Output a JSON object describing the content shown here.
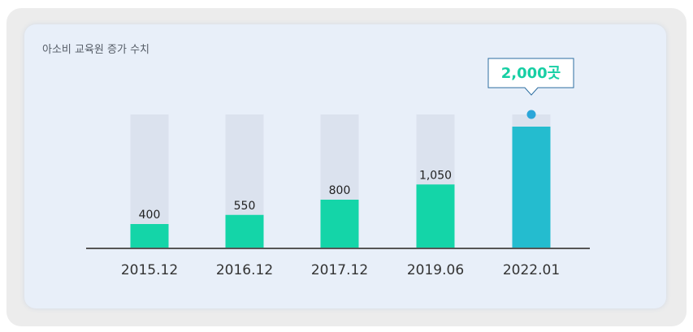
{
  "chart_data": {
    "type": "bar",
    "title": "아소비 교육원 증가 수치",
    "categories": [
      "2015.12",
      "2016.12",
      "2017.12",
      "2019.06",
      "2022.01"
    ],
    "values": [
      400,
      550,
      800,
      1050,
      2000
    ],
    "value_labels": [
      "400",
      "550",
      "800",
      "1,050",
      ""
    ],
    "callout": "2,000곳",
    "ylim": [
      0,
      2200
    ],
    "grid": false,
    "colors": {
      "bar": "#14d5a8",
      "highlight_bar": "#24bccf",
      "track": "#dbe2ee",
      "baseline": "#555555",
      "callout_text": "#16cfa4",
      "callout_border": "#2d6ea1",
      "dot": "#2ba6d9"
    }
  }
}
